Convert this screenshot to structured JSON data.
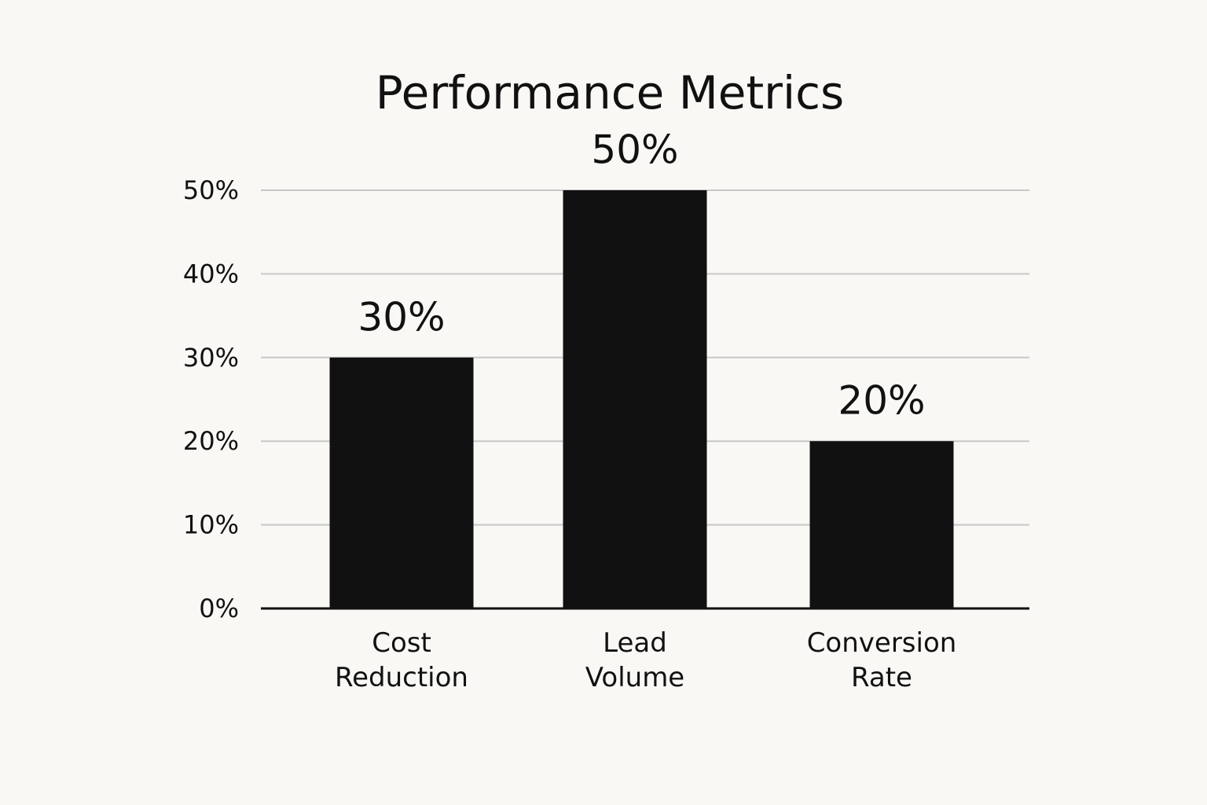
{
  "chart_data": {
    "type": "bar",
    "title": "Performance Metrics",
    "categories": [
      "Cost Reduction",
      "Lead Volume",
      "Conversion Rate"
    ],
    "values": [
      30,
      50,
      20
    ],
    "value_labels": [
      "30%",
      "50%",
      "20%"
    ],
    "color": "#111111",
    "ylim": [
      0,
      50
    ],
    "yticks": [
      {
        "value": 0,
        "label": "0%"
      },
      {
        "value": 10,
        "label": "10%"
      },
      {
        "value": 20,
        "label": "20%"
      },
      {
        "value": 30,
        "label": "30%"
      },
      {
        "value": 40,
        "label": "40%"
      },
      {
        "value": 50,
        "label": "50%"
      }
    ],
    "grid": true
  }
}
